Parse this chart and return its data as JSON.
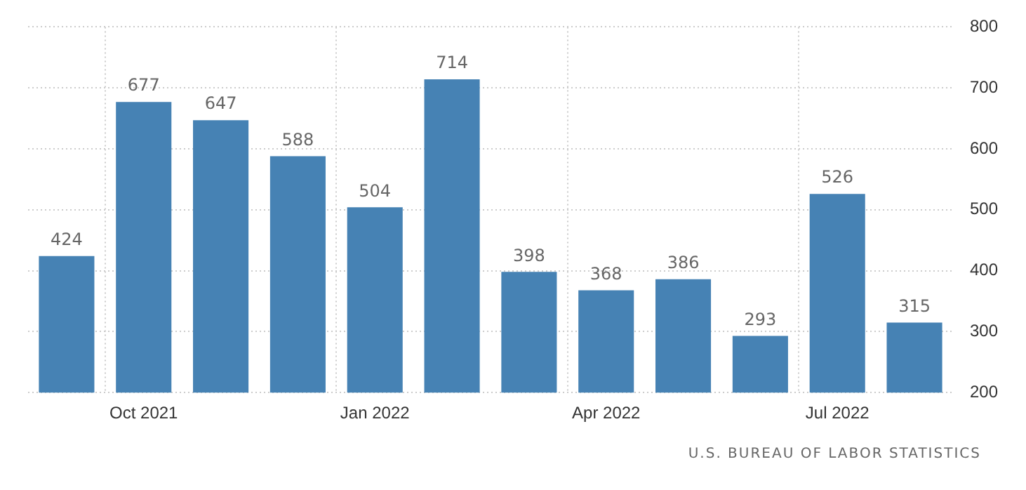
{
  "chart_data": {
    "type": "bar",
    "categories": [
      null,
      "Oct 2021",
      null,
      null,
      "Jan 2022",
      null,
      null,
      "Apr 2022",
      null,
      null,
      "Jul 2022",
      null
    ],
    "values": [
      424,
      677,
      647,
      588,
      504,
      714,
      398,
      368,
      386,
      293,
      526,
      315
    ],
    "color": "#4682b4",
    "ylim": [
      200,
      800
    ],
    "yticks": [
      200,
      300,
      400,
      500,
      600,
      700,
      800
    ],
    "grid": true,
    "data_labels": true,
    "legend": false,
    "annotations": [
      "U.S. BUREAU OF LABOR STATISTICS"
    ]
  }
}
